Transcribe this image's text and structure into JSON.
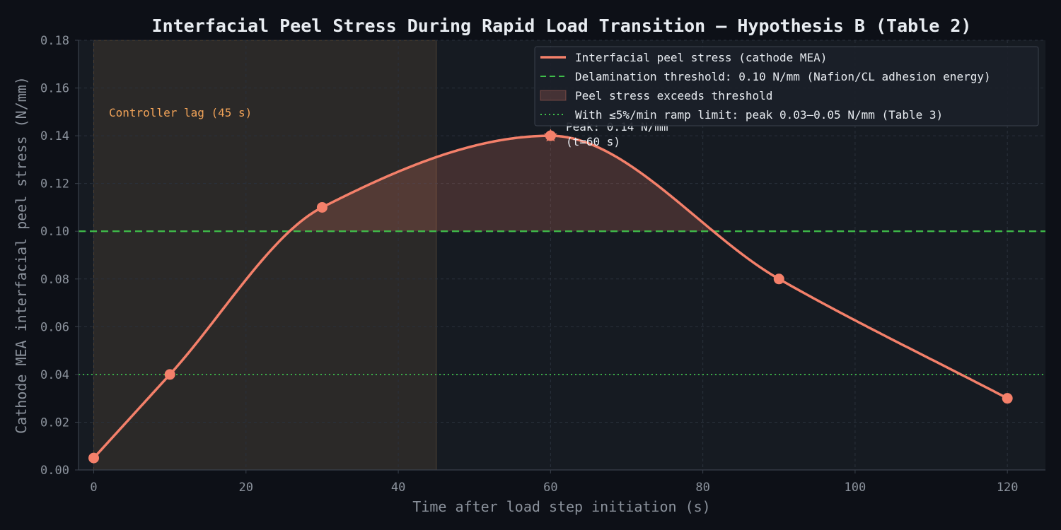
{
  "chart_data": {
    "type": "line",
    "title": "Interfacial Peel Stress During Rapid Load Transition — Hypothesis B (Table 2)",
    "xlabel": "Time after load step initiation (s)",
    "ylabel": "Cathode MEA interfacial peel stress (N/mm)",
    "xlim": [
      -2,
      125
    ],
    "ylim": [
      0,
      0.18
    ],
    "xticks": [
      0,
      20,
      40,
      60,
      80,
      100,
      120
    ],
    "yticks": [
      0.0,
      0.02,
      0.04,
      0.06,
      0.08,
      0.1,
      0.12,
      0.14,
      0.16,
      0.18
    ],
    "grid": true,
    "series": [
      {
        "name": "Interfacial peel stress (cathode MEA)",
        "type": "line",
        "color": "#f4806a",
        "points": [
          [
            0,
            0.005
          ],
          [
            10,
            0.04
          ],
          [
            30,
            0.11
          ],
          [
            60,
            0.14
          ],
          [
            90,
            0.08
          ],
          [
            120,
            0.03
          ]
        ]
      }
    ],
    "reference_lines": [
      {
        "name": "Delamination threshold: 0.10 N/mm (Nafion/CL adhesion energy)",
        "y": 0.1,
        "style": "dashed",
        "color": "#3fbf4a"
      },
      {
        "name": "With ≤5%/min ramp limit: peak 0.03–0.05 N/mm (Table 3)",
        "y": 0.04,
        "style": "dotted",
        "color": "#3fbf4a"
      }
    ],
    "fill_region": {
      "name": "Peel stress exceeds threshold",
      "color": "#f4806a"
    },
    "shaded_span": {
      "label": "Controller lag (45 s)",
      "x": [
        0,
        45
      ],
      "color": "#b88a58"
    },
    "annotation": {
      "lines": [
        "Peak: 0.14 N/mm",
        "(t=60 s)"
      ],
      "x": 60,
      "y": 0.14
    },
    "legend": {
      "position": "top-right"
    }
  }
}
